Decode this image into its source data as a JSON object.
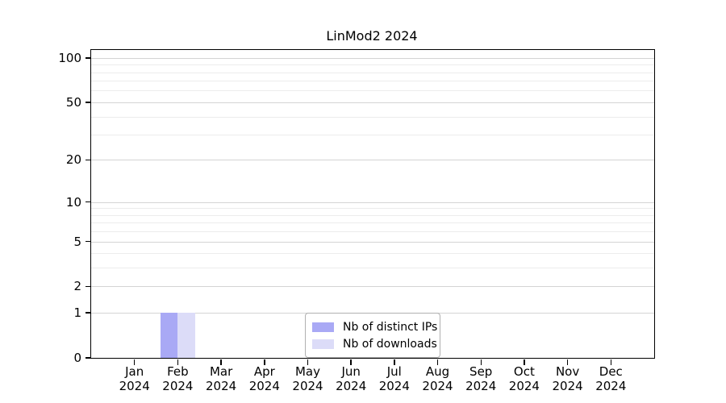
{
  "title": "LinMod2 2024",
  "chart_data": {
    "type": "bar",
    "title": "LinMod2 2024",
    "categories": [
      "Jan 2024",
      "Feb 2024",
      "Mar 2024",
      "Apr 2024",
      "May 2024",
      "Jun 2024",
      "Jul 2024",
      "Aug 2024",
      "Sep 2024",
      "Oct 2024",
      "Nov 2024",
      "Dec 2024"
    ],
    "x_tick_line1": [
      "Jan",
      "Feb",
      "Mar",
      "Apr",
      "May",
      "Jun",
      "Jul",
      "Aug",
      "Sep",
      "Oct",
      "Nov",
      "Dec"
    ],
    "x_tick_line2": "2024",
    "series": [
      {
        "name": "Nb of distinct IPs",
        "color": "#a9a9f5",
        "values": [
          0,
          1,
          0,
          0,
          0,
          0,
          0,
          0,
          0,
          0,
          0,
          0
        ]
      },
      {
        "name": "Nb of downloads",
        "color": "#dcdcf8",
        "values": [
          0,
          1,
          0,
          0,
          0,
          0,
          0,
          0,
          0,
          0,
          0,
          0
        ]
      }
    ],
    "y_axis": {
      "scale": "log1p",
      "ticks": [
        0,
        1,
        2,
        5,
        10,
        20,
        50,
        100
      ],
      "minor_gridlines": [
        3,
        4,
        6,
        7,
        8,
        9,
        30,
        40,
        60,
        70,
        80,
        90
      ],
      "ylim": [
        0,
        113
      ]
    },
    "xlabel": "",
    "ylabel": "",
    "grid": true,
    "legend": {
      "position": "inside-bottom-center",
      "entries": [
        "Nb of distinct IPs",
        "Nb of downloads"
      ]
    }
  }
}
